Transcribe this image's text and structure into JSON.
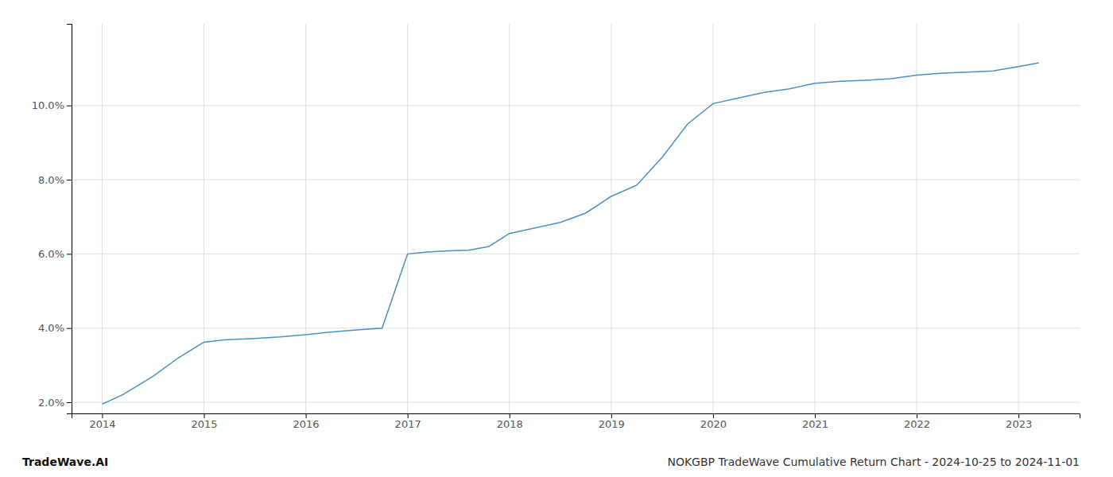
{
  "chart_data": {
    "type": "line",
    "title": "NOKGBP TradeWave Cumulative Return Chart - 2024-10-25 to 2024-11-01",
    "annotations": [
      "TradeWave.AI"
    ],
    "x": [
      2014.0,
      2014.2,
      2014.5,
      2014.75,
      2015.0,
      2015.2,
      2015.5,
      2015.75,
      2016.0,
      2016.2,
      2016.5,
      2016.75,
      2017.0,
      2017.2,
      2017.4,
      2017.6,
      2017.8,
      2018.0,
      2018.25,
      2018.5,
      2018.75,
      2019.0,
      2019.25,
      2019.5,
      2019.75,
      2020.0,
      2020.25,
      2020.5,
      2020.75,
      2021.0,
      2021.25,
      2021.5,
      2021.75,
      2022.0,
      2022.25,
      2022.5,
      2022.75,
      2023.0,
      2023.2
    ],
    "values": [
      1.95,
      2.2,
      2.7,
      3.2,
      3.62,
      3.68,
      3.72,
      3.76,
      3.82,
      3.88,
      3.95,
      4.0,
      6.0,
      6.05,
      6.08,
      6.1,
      6.2,
      6.55,
      6.7,
      6.85,
      7.1,
      7.55,
      7.85,
      8.6,
      9.5,
      10.05,
      10.2,
      10.35,
      10.45,
      10.6,
      10.65,
      10.68,
      10.72,
      10.82,
      10.87,
      10.9,
      10.93,
      11.05,
      11.15
    ],
    "color": "#4a90c4",
    "xlim": [
      2013.7,
      2023.6
    ],
    "xticks": [
      2014,
      2015,
      2016,
      2017,
      2018,
      2019,
      2020,
      2021,
      2022,
      2023
    ],
    "ylim": [
      1.7,
      12.2
    ],
    "yticks": [
      {
        "value": 2.0,
        "label": "2.0%"
      },
      {
        "value": 4.0,
        "label": "4.0%"
      },
      {
        "value": 6.0,
        "label": "6.0%"
      },
      {
        "value": 8.0,
        "label": "8.0%"
      },
      {
        "value": 10.0,
        "label": "10.0%"
      }
    ],
    "grid": true
  }
}
